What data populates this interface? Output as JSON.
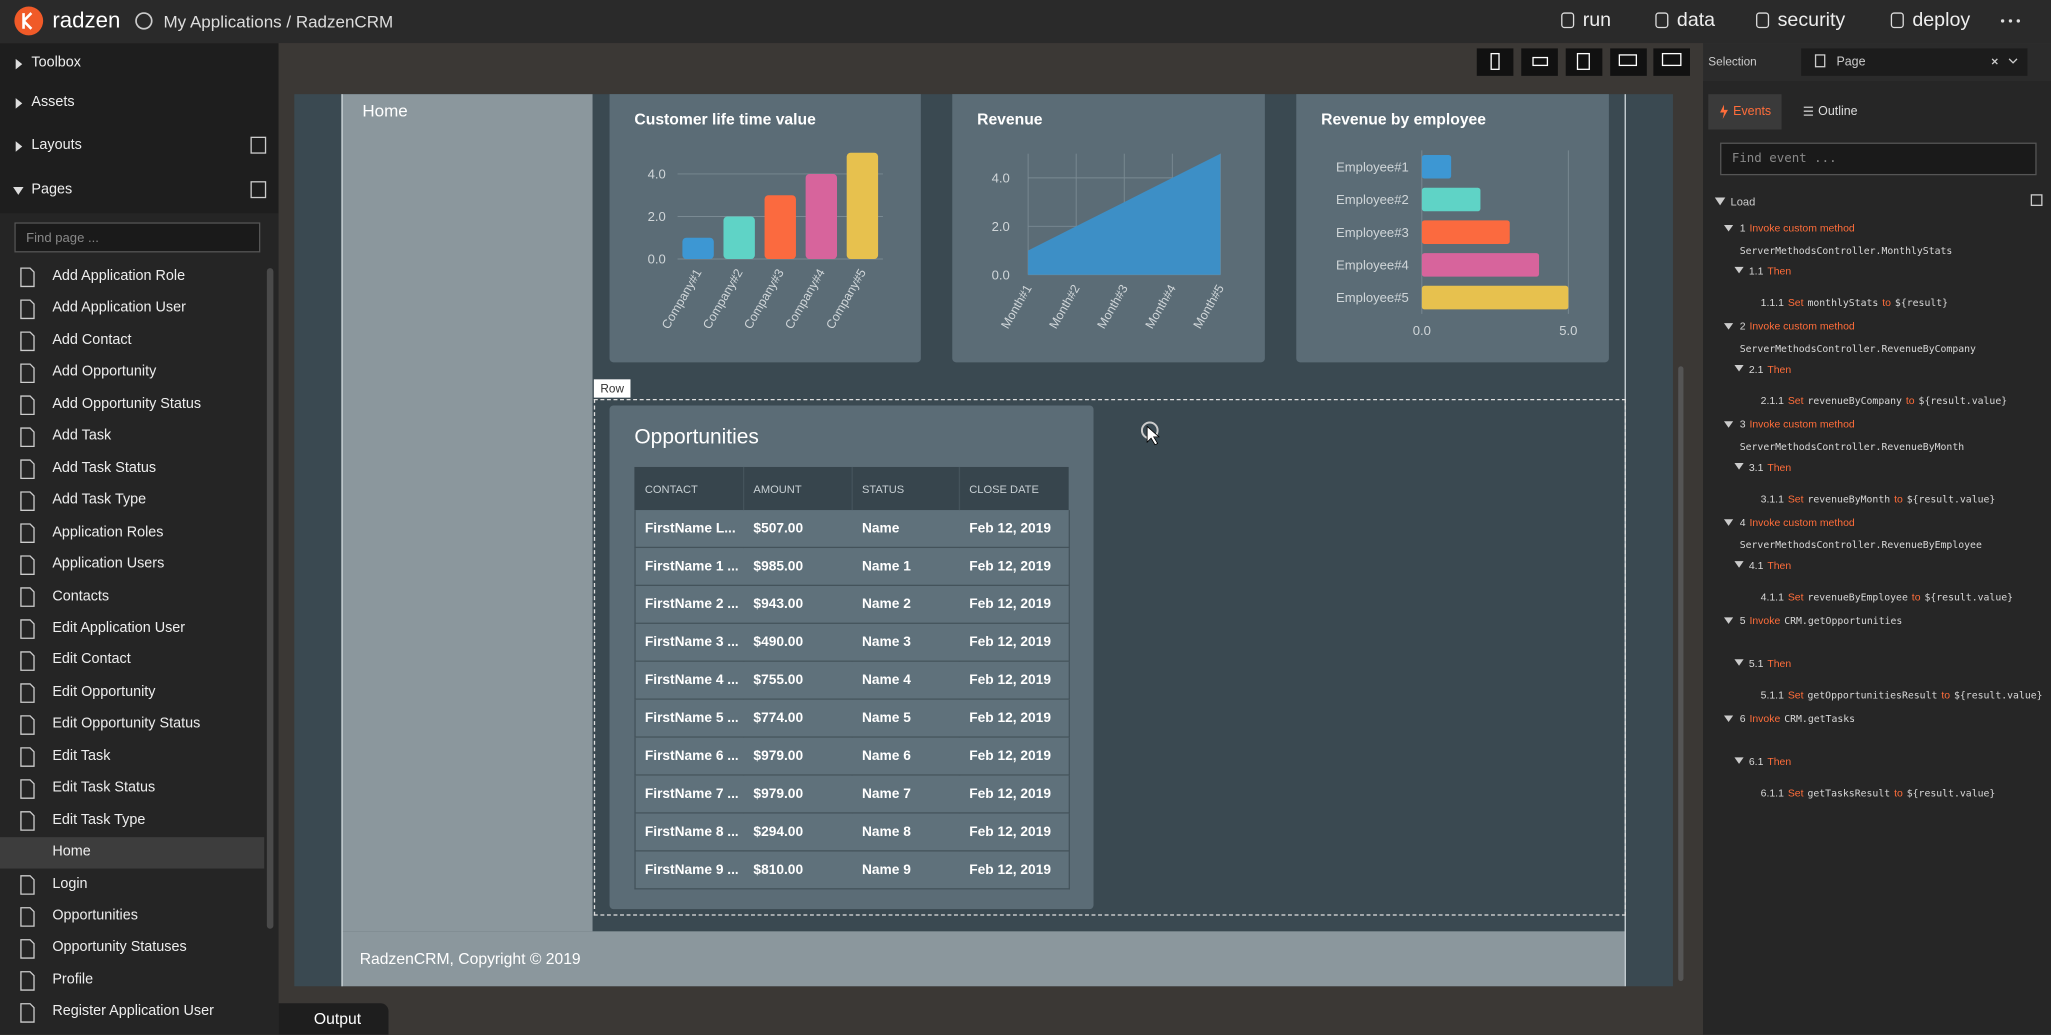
{
  "app": {
    "brand": "radzen",
    "breadcrumb": "My Applications / RadzenCRM",
    "actions": [
      "run",
      "data",
      "security",
      "deploy"
    ]
  },
  "sidebar": {
    "sections": [
      "Toolbox",
      "Assets",
      "Layouts",
      "Pages"
    ],
    "search_placeholder": "Find page ...",
    "pages": [
      "Add Application Role",
      "Add Application User",
      "Add Contact",
      "Add Opportunity",
      "Add Opportunity Status",
      "Add Task",
      "Add Task Status",
      "Add Task Type",
      "Application Roles",
      "Application Users",
      "Contacts",
      "Edit Application User",
      "Edit Contact",
      "Edit Opportunity",
      "Edit Opportunity Status",
      "Edit Task",
      "Edit Task Status",
      "Edit Task Type",
      "Home",
      "Login",
      "Opportunities",
      "Opportunity Statuses",
      "Profile",
      "Register Application User"
    ]
  },
  "dashboard": {
    "nav_item": "Home",
    "row_label": "Row",
    "footer": "RadzenCRM, Copyright © 2019",
    "charts": [
      {
        "type": "bar",
        "title": "Customer life time value",
        "categories": [
          "Company#1",
          "Company#2",
          "Company#3",
          "Company#4",
          "Company#5"
        ],
        "values": [
          1,
          2,
          3,
          4,
          5
        ],
        "colors": [
          "#3d97d3",
          "#5fd3c6",
          "#fb6a3f",
          "#d7649c",
          "#e7c14e"
        ],
        "ylim": [
          0,
          5
        ],
        "yticks": [
          {
            "value": 0,
            "label": "0.0"
          },
          {
            "value": 2,
            "label": "2.0"
          },
          {
            "value": 4,
            "label": "4.0"
          }
        ],
        "grid": true
      },
      {
        "type": "area",
        "title": "Revenue",
        "categories": [
          "Month#1",
          "Month#2",
          "Month#3",
          "Month#4",
          "Month#5"
        ],
        "values": [
          1,
          2,
          3,
          4,
          5
        ],
        "color": "#3d8fc6",
        "ylim": [
          0,
          5
        ],
        "yticks": [
          {
            "value": 0,
            "label": "0.0"
          },
          {
            "value": 2,
            "label": "2.0"
          },
          {
            "value": 4,
            "label": "4.0"
          }
        ],
        "grid": true
      },
      {
        "type": "barh",
        "title": "Revenue by employee",
        "categories": [
          "Employee#1",
          "Employee#2",
          "Employee#3",
          "Employee#4",
          "Employee#5"
        ],
        "values": [
          1,
          2,
          3,
          4,
          5
        ],
        "colors": [
          "#3d97d3",
          "#5fd3c6",
          "#fb6a3f",
          "#d7649c",
          "#e7c14e"
        ],
        "xlim": [
          0,
          5
        ],
        "xticks": [
          {
            "value": 0,
            "label": "0.0"
          },
          {
            "value": 5,
            "label": "5.0"
          }
        ],
        "grid": true
      }
    ],
    "table": {
      "title": "Opportunities",
      "columns": [
        "CONTACT",
        "AMOUNT",
        "STATUS",
        "CLOSE DATE"
      ],
      "rows": [
        [
          "FirstName L...",
          "$507.00",
          "Name",
          "Feb 12, 2019"
        ],
        [
          "FirstName 1 ...",
          "$985.00",
          "Name 1",
          "Feb 12, 2019"
        ],
        [
          "FirstName 2 ...",
          "$943.00",
          "Name 2",
          "Feb 12, 2019"
        ],
        [
          "FirstName 3 ...",
          "$490.00",
          "Name 3",
          "Feb 12, 2019"
        ],
        [
          "FirstName 4 ...",
          "$755.00",
          "Name 4",
          "Feb 12, 2019"
        ],
        [
          "FirstName 5 ...",
          "$774.00",
          "Name 5",
          "Feb 12, 2019"
        ],
        [
          "FirstName 6 ...",
          "$979.00",
          "Name 6",
          "Feb 12, 2019"
        ],
        [
          "FirstName 7 ...",
          "$979.00",
          "Name 7",
          "Feb 12, 2019"
        ],
        [
          "FirstName 8 ...",
          "$294.00",
          "Name 8",
          "Feb 12, 2019"
        ],
        [
          "FirstName 9 ...",
          "$810.00",
          "Name 9",
          "Feb 12, 2019"
        ]
      ]
    }
  },
  "output_tab": "Output",
  "panel": {
    "selection_label": "Selection",
    "selection_value": "Page",
    "tabs": [
      "Events",
      "Outline"
    ],
    "search_placeholder": "Find event ...",
    "event": "Load",
    "steps": [
      {
        "id": "1",
        "verb": "Invoke custom method",
        "method": "ServerMethodsController.MonthlyStats",
        "then_id": "1.1",
        "then": "Then",
        "set_id": "1.1.1",
        "set": "Set",
        "set_target": "monthlyStats",
        "to": "to",
        "set_value": "${result}"
      },
      {
        "id": "2",
        "verb": "Invoke custom method",
        "method": "ServerMethodsController.RevenueByCompany",
        "then_id": "2.1",
        "then": "Then",
        "set_id": "2.1.1",
        "set": "Set",
        "set_target": "revenueByCompany",
        "to": "to",
        "set_value": "${result.value}"
      },
      {
        "id": "3",
        "verb": "Invoke custom method",
        "method": "ServerMethodsController.RevenueByMonth",
        "then_id": "3.1",
        "then": "Then",
        "set_id": "3.1.1",
        "set": "Set",
        "set_target": "revenueByMonth",
        "to": "to",
        "set_value": "${result.value}"
      },
      {
        "id": "4",
        "verb": "Invoke custom method",
        "method": "ServerMethodsController.RevenueByEmployee",
        "then_id": "4.1",
        "then": "Then",
        "set_id": "4.1.1",
        "set": "Set",
        "set_target": "revenueByEmployee",
        "to": "to",
        "set_value": "${result.value}"
      },
      {
        "id": "5",
        "verb": "Invoke",
        "method": "CRM.getOpportunities",
        "then_id": "5.1",
        "then": "Then",
        "set_id": "5.1.1",
        "set": "Set",
        "set_target": "getOpportunitiesResult",
        "to": "to",
        "set_value": "${result.value}"
      },
      {
        "id": "6",
        "verb": "Invoke",
        "method": "CRM.getTasks",
        "then_id": "6.1",
        "then": "Then",
        "set_id": "6.1.1",
        "set": "Set",
        "set_target": "getTasksResult",
        "to": "to",
        "set_value": "${result.value}"
      }
    ]
  }
}
